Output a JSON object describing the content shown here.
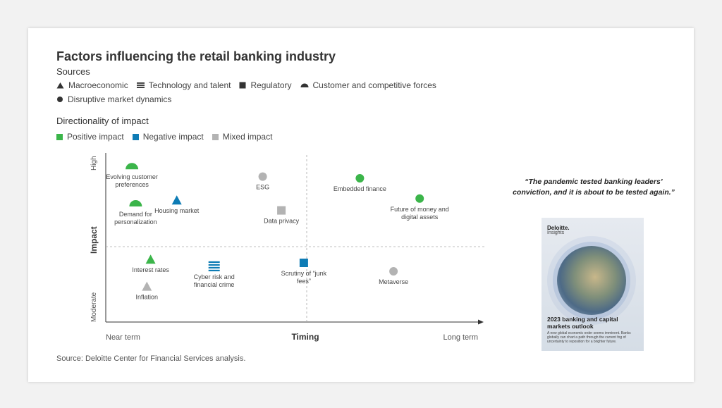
{
  "title": "Factors influencing the retail banking industry",
  "sources_label": "Sources",
  "sources": [
    {
      "label": "Macroeconomic",
      "icon": "triangle-icon"
    },
    {
      "label": "Technology and talent",
      "icon": "lines-icon"
    },
    {
      "label": "Regulatory",
      "icon": "square-icon"
    },
    {
      "label": "Customer and competitive forces",
      "icon": "half-circle-icon"
    },
    {
      "label": "Disruptive market dynamics",
      "icon": "circle-icon"
    }
  ],
  "directionality_label": "Directionality of impact",
  "impacts": [
    {
      "label": "Positive impact",
      "color": "#3bb54a"
    },
    {
      "label": "Negative impact",
      "color": "#0e7cb5"
    },
    {
      "label": "Mixed impact",
      "color": "#b3b3b3"
    }
  ],
  "source_note": "Source: Deloitte Center for Financial Services analysis.",
  "quote": "“The pandemic tested banking leaders’ conviction, and it is about to be tested again.”",
  "report": {
    "brand": "Deloitte.",
    "brand_sub": "Insights",
    "title": "2023 banking and capital markets outlook",
    "subtitle": "A new global economic order seems imminent. Banks globally can chart a path through the current fog of uncertainty to reposition for a brighter future."
  },
  "chart_data": {
    "type": "scatter",
    "xlabel": "Timing",
    "ylabel": "Impact",
    "x_ticks": [
      "Near term",
      "Long term"
    ],
    "y_ticks": [
      "Moderate",
      "High"
    ],
    "xlim": [
      0,
      100
    ],
    "ylim": [
      0,
      100
    ],
    "midlines": {
      "x": 50,
      "y": 50
    },
    "points": [
      {
        "label": "Evolving customer preferences",
        "x": 7,
        "y": 92,
        "shape": "half-circle",
        "impact": "Positive impact"
      },
      {
        "label": "Demand for personalization",
        "x": 8,
        "y": 70,
        "shape": "half-circle",
        "impact": "Positive impact"
      },
      {
        "label": "Housing market",
        "x": 19,
        "y": 72,
        "shape": "triangle",
        "impact": "Negative impact"
      },
      {
        "label": "ESG",
        "x": 42,
        "y": 86,
        "shape": "circle",
        "impact": "Mixed impact"
      },
      {
        "label": "Data privacy",
        "x": 47,
        "y": 66,
        "shape": "square",
        "impact": "Mixed impact"
      },
      {
        "label": "Embedded finance",
        "x": 68,
        "y": 85,
        "shape": "circle",
        "impact": "Positive impact"
      },
      {
        "label": "Future of money and digital assets",
        "x": 84,
        "y": 73,
        "shape": "circle",
        "impact": "Positive impact"
      },
      {
        "label": "Interest rates",
        "x": 12,
        "y": 37,
        "shape": "triangle",
        "impact": "Positive impact"
      },
      {
        "label": "Inflation",
        "x": 11,
        "y": 21,
        "shape": "triangle",
        "impact": "Mixed impact"
      },
      {
        "label": "Cyber risk and financial crime",
        "x": 29,
        "y": 33,
        "shape": "lines",
        "impact": "Negative impact"
      },
      {
        "label": "Scrutiny of “junk fees”",
        "x": 53,
        "y": 35,
        "shape": "square",
        "impact": "Negative impact"
      },
      {
        "label": "Metaverse",
        "x": 77,
        "y": 30,
        "shape": "circle",
        "impact": "Mixed impact"
      }
    ]
  }
}
